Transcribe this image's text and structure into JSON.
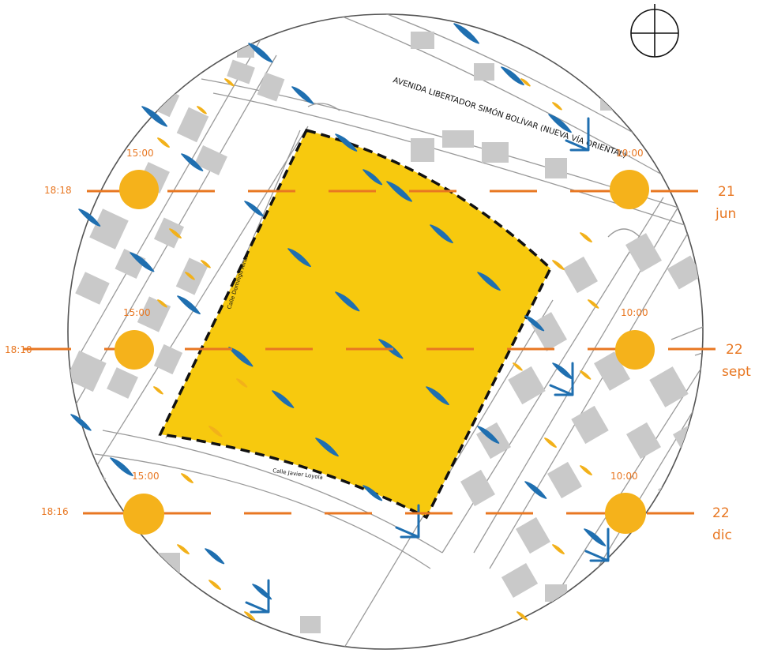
{
  "colors": {
    "site_fill": "#f7c90e",
    "sun": "#f5b21b",
    "sun_line": "#e87722",
    "label": "#e87722",
    "wind_blue": "#1f6fb0",
    "wind_yellow": "#f2b11a",
    "building": "#c9c9c9",
    "street_line": "#9a9a9a"
  },
  "icons": {
    "north": "north-arrow-icon"
  },
  "streets": {
    "avenue": "AVENIDA LIBERTADOR SIMÓN BOLÍVAR (NUEVA VÍA ORIENTAL)",
    "domingo": "Calle Domingo Ainas",
    "javier": "Calle Javier Loyola"
  },
  "sun_paths": [
    {
      "id": "jun",
      "sunset": "18:18",
      "afternoon": "15:00",
      "morning": "10:00",
      "day": "21",
      "month": "jun"
    },
    {
      "id": "sept",
      "sunset": "18:10",
      "afternoon": "15:00",
      "morning": "10:00",
      "day": "22",
      "month": "sept"
    },
    {
      "id": "dic",
      "sunset": "18:16",
      "afternoon": "15:00",
      "morning": "10:00",
      "day": "22",
      "month": "dic"
    }
  ]
}
